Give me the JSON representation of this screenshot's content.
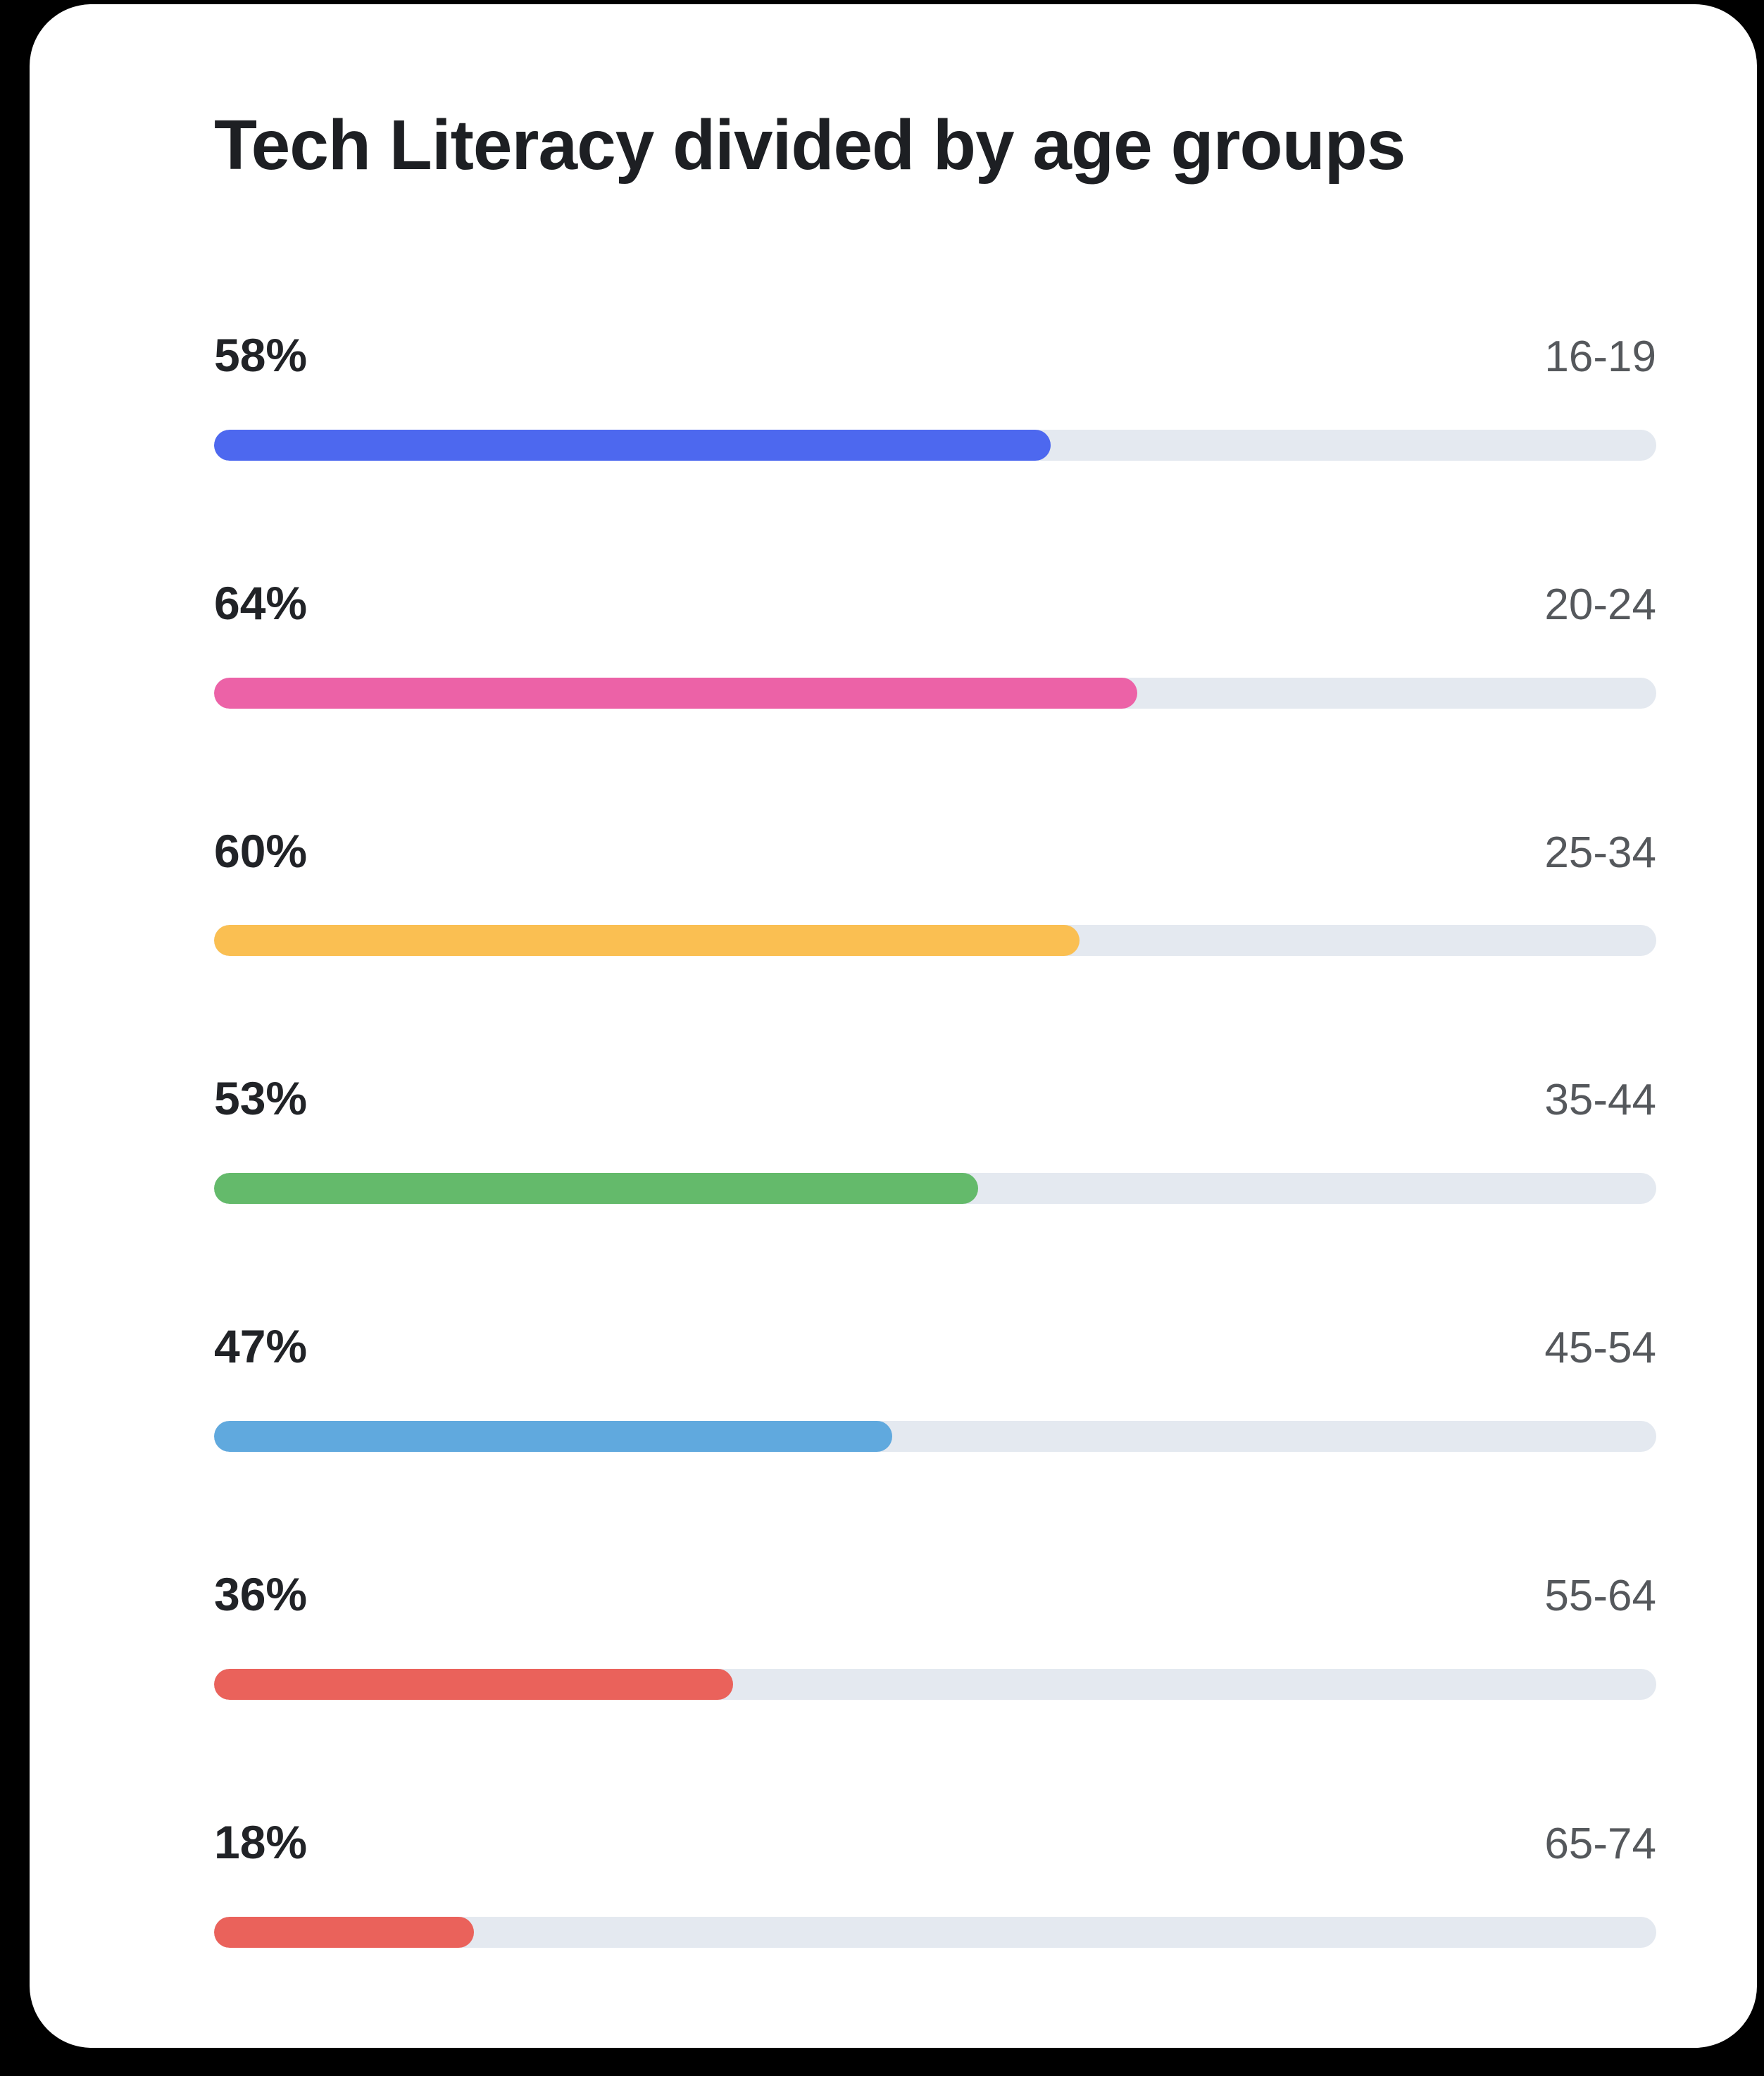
{
  "card": {
    "title": "Tech Literacy divided by age groups"
  },
  "colors": {
    "page_background": "#000000",
    "card_background": "#ffffff",
    "title_text": "#1d1f23",
    "percent_text": "#212327",
    "age_text": "#55585c",
    "track": "#e4e9f0"
  },
  "rows": [
    {
      "percent_label": "58%",
      "age_label": "16-19",
      "value": 58,
      "color": "#4d68ef"
    },
    {
      "percent_label": "64%",
      "age_label": "20-24",
      "value": 64,
      "color": "#ec62a7"
    },
    {
      "percent_label": "60%",
      "age_label": "25-34",
      "value": 60,
      "color": "#fabf52"
    },
    {
      "percent_label": "53%",
      "age_label": "35-44",
      "value": 53,
      "color": "#64ba6b"
    },
    {
      "percent_label": "47%",
      "age_label": "45-54",
      "value": 47,
      "color": "#60a9de"
    },
    {
      "percent_label": "36%",
      "age_label": "55-64",
      "value": 36,
      "color": "#ea625b"
    },
    {
      "percent_label": "18%",
      "age_label": "65-74",
      "value": 18,
      "color": "#ea625b"
    }
  ],
  "chart_data": {
    "type": "bar",
    "orientation": "horizontal",
    "title": "Tech Literacy divided by age groups",
    "categories": [
      "16-19",
      "20-24",
      "25-34",
      "35-44",
      "45-54",
      "55-64",
      "65-74"
    ],
    "values": [
      58,
      64,
      60,
      53,
      47,
      36,
      18
    ],
    "value_unit": "%",
    "xlim": [
      0,
      100
    ],
    "xlabel": "",
    "ylabel": "",
    "grid": false,
    "legend": false,
    "data_labels_position": "above-left",
    "category_labels_position": "above-right",
    "bar_colors": [
      "#4d68ef",
      "#ec62a7",
      "#fabf52",
      "#64ba6b",
      "#60a9de",
      "#ea625b",
      "#ea625b"
    ]
  }
}
